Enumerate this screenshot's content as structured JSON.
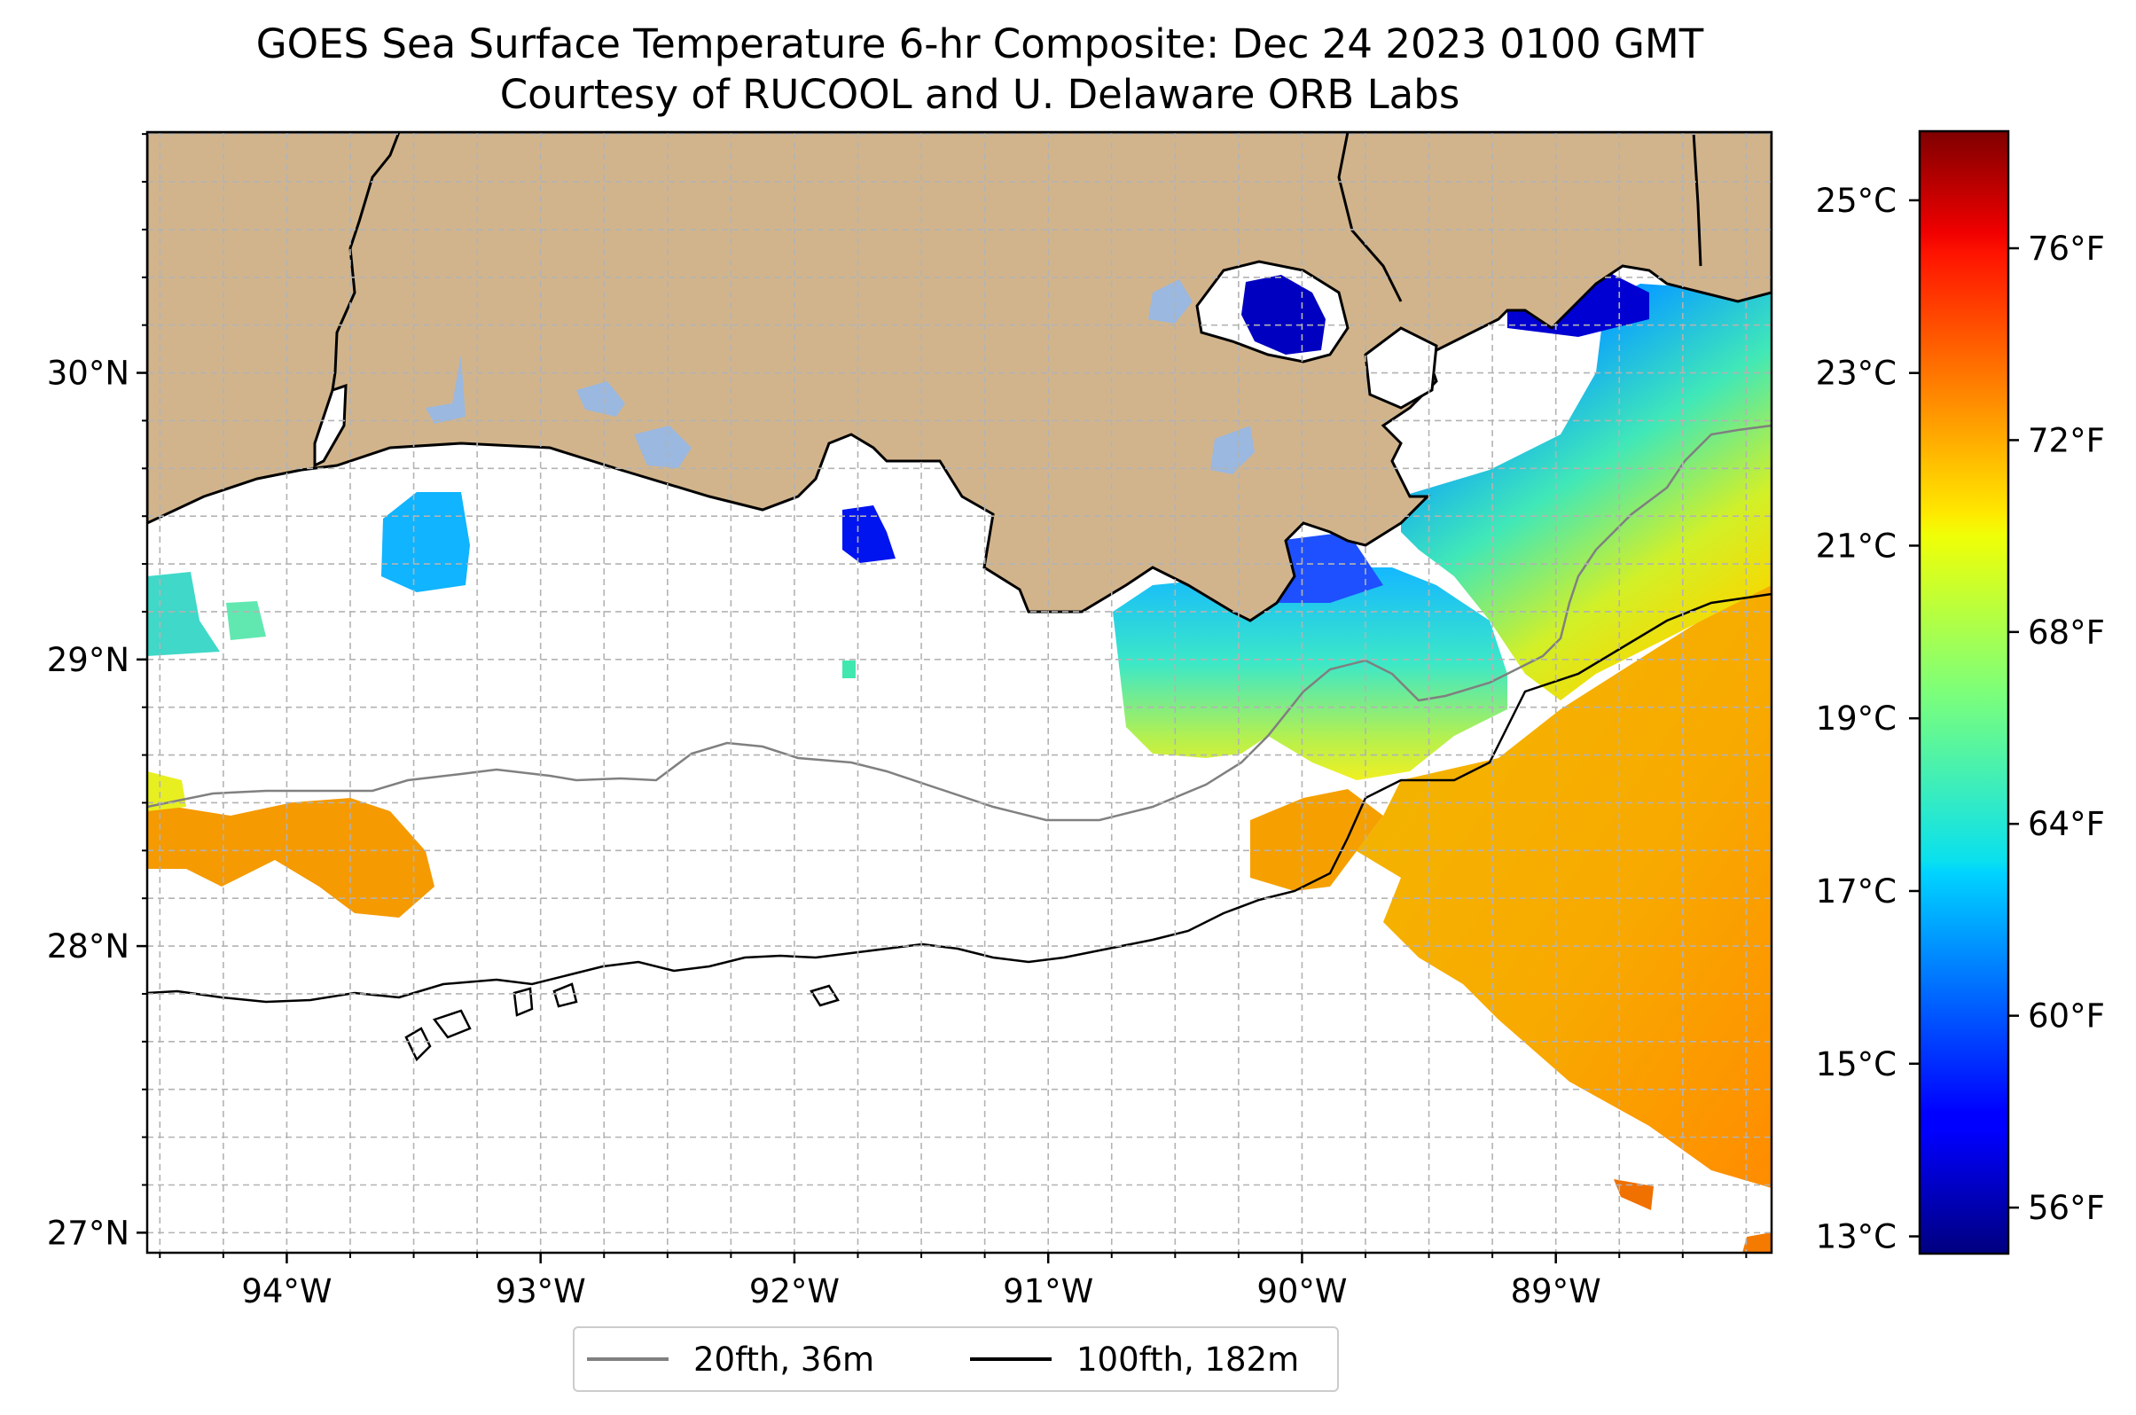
{
  "title": {
    "line1": "GOES Sea Surface Temperature 6-hr Composite: Dec 24 2023 0100 GMT",
    "line2": "Courtesy of RUCOOL and U. Delaware ORB Labs"
  },
  "map": {
    "extent": {
      "lon_min": -94.55,
      "lon_max": -88.15,
      "lat_min": 26.93,
      "lat_max": 30.84
    },
    "lat_ticks": [
      {
        "value": 30,
        "label": "30°N"
      },
      {
        "value": 29,
        "label": "29°N"
      },
      {
        "value": 28,
        "label": "28°N"
      },
      {
        "value": 27,
        "label": "27°N"
      }
    ],
    "lon_ticks": [
      {
        "value": -94,
        "label": "94°W"
      },
      {
        "value": -93,
        "label": "93°W"
      },
      {
        "value": -92,
        "label": "92°W"
      },
      {
        "value": -91,
        "label": "91°W"
      },
      {
        "value": -90,
        "label": "90°W"
      },
      {
        "value": -89,
        "label": "89°W"
      }
    ],
    "grid": true,
    "colors": {
      "land": "#d2b48c",
      "lake": "#9ab8e0",
      "ocean_nodata": "#ffffff"
    }
  },
  "legend": {
    "placement": "bottom-center",
    "items": [
      {
        "label": "20fth, 36m",
        "color": "#808080"
      },
      {
        "label": "100fth, 182m",
        "color": "#000000"
      }
    ]
  },
  "colorbar": {
    "colormap": "jet",
    "range_c": [
      12.8,
      25.8
    ],
    "celsius_ticks": [
      {
        "value": 25,
        "label": "25°C"
      },
      {
        "value": 23,
        "label": "23°C"
      },
      {
        "value": 21,
        "label": "21°C"
      },
      {
        "value": 19,
        "label": "19°C"
      },
      {
        "value": 17,
        "label": "17°C"
      },
      {
        "value": 15,
        "label": "15°C"
      },
      {
        "value": 13,
        "label": "13°C"
      }
    ],
    "fahrenheit_ticks": [
      {
        "value": 76,
        "label": "76°F"
      },
      {
        "value": 72,
        "label": "72°F"
      },
      {
        "value": 68,
        "label": "68°F"
      },
      {
        "value": 64,
        "label": "64°F"
      },
      {
        "value": 60,
        "label": "60°F"
      },
      {
        "value": 56,
        "label": "56°F"
      }
    ]
  }
}
